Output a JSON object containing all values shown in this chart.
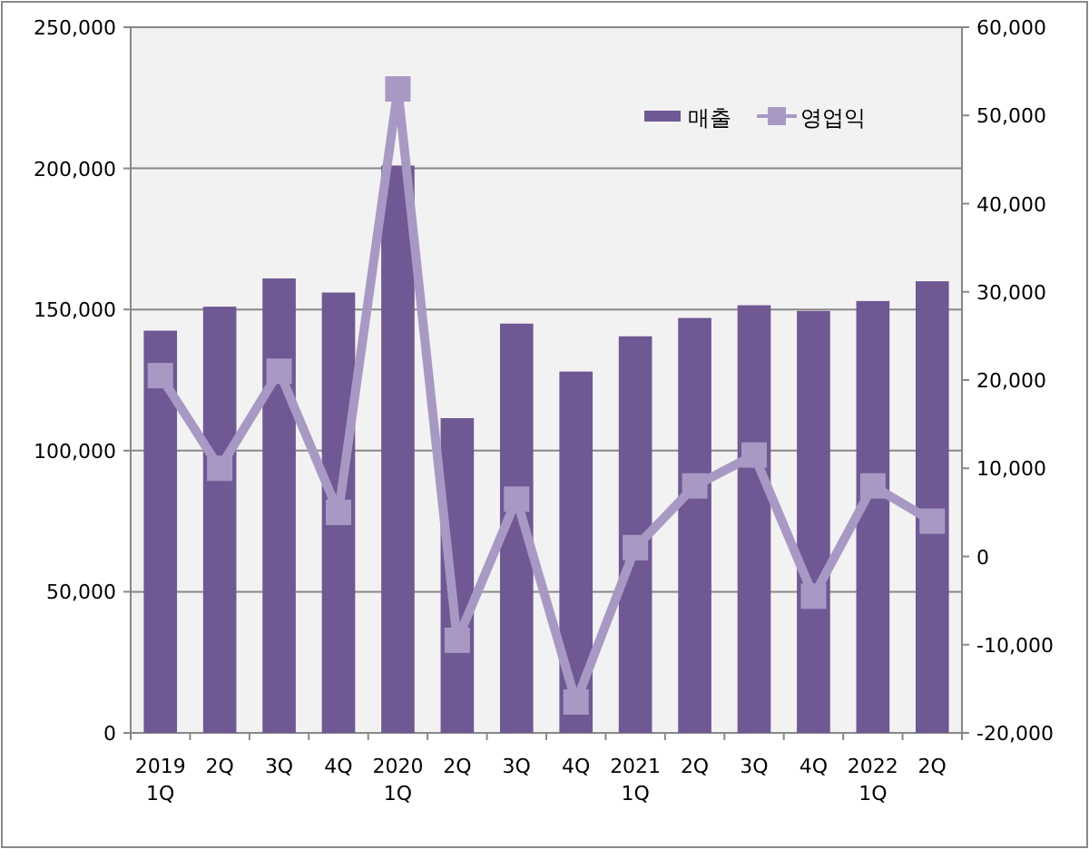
{
  "chart_data": {
    "type": "bar",
    "categories": [
      "2019\n1Q",
      "2Q",
      "3Q",
      "4Q",
      "2020\n1Q",
      "2Q",
      "3Q",
      "4Q",
      "2021\n1Q",
      "2Q",
      "3Q",
      "4Q",
      "2022\n1Q",
      "2Q"
    ],
    "series": [
      {
        "name": "매출",
        "color": "#6f5893",
        "values": [
          142500,
          151000,
          161000,
          156000,
          201000,
          111500,
          145000,
          128000,
          140500,
          147000,
          151500,
          149500,
          153000,
          160000
        ]
      },
      {
        "name": "영업익",
        "type": "line",
        "axis": "y2",
        "color": "#a899c4",
        "marker": "square",
        "values": [
          20500,
          10000,
          21000,
          5000,
          53000,
          -9500,
          6500,
          -16500,
          1000,
          8000,
          11500,
          -4500,
          8000,
          4000
        ]
      }
    ],
    "ylim": [
      0,
      250000
    ],
    "yticks": [
      {
        "value": 0,
        "label": "0"
      },
      {
        "value": 50000,
        "label": "50,000"
      },
      {
        "value": 100000,
        "label": "100,000"
      },
      {
        "value": 150000,
        "label": "150,000"
      },
      {
        "value": 200000,
        "label": "200,000"
      },
      {
        "value": 250000,
        "label": "250,000"
      }
    ],
    "y2lim": [
      -20000,
      60000
    ],
    "y2ticks": [
      {
        "value": -20000,
        "label": "-20,000"
      },
      {
        "value": -10000,
        "label": "-10,000"
      },
      {
        "value": 0,
        "label": "0"
      },
      {
        "value": 10000,
        "label": "10,000"
      },
      {
        "value": 20000,
        "label": "20,000"
      },
      {
        "value": 30000,
        "label": "30,000"
      },
      {
        "value": 40000,
        "label": "40,000"
      },
      {
        "value": 50000,
        "label": "50,000"
      },
      {
        "value": 60000,
        "label": "60,000"
      }
    ],
    "grid": "y",
    "legend": "top right"
  }
}
